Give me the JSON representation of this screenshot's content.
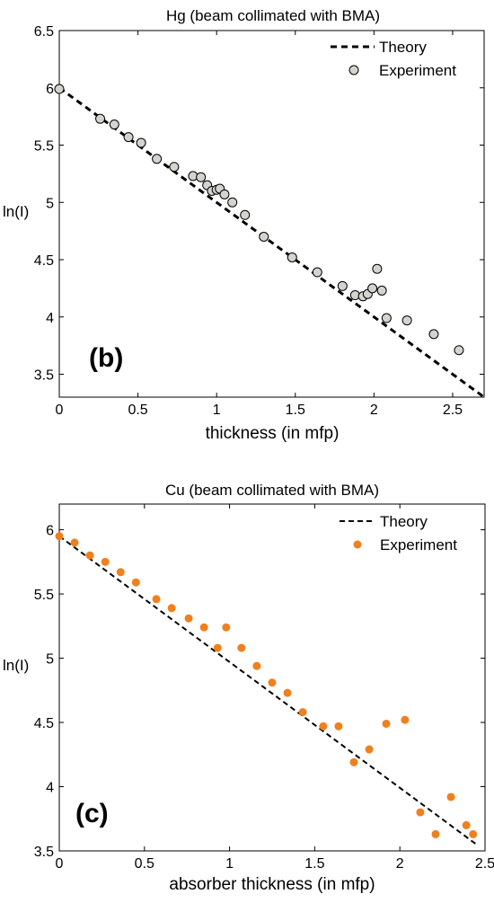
{
  "chart_data": [
    {
      "type": "scatter",
      "panel_label": "(b)",
      "title": "Hg (beam collimated with BMA)",
      "xlabel": "thickness (in mfp)",
      "ylabel": "ln(I)",
      "xlim": [
        0,
        2.7
      ],
      "ylim": [
        3.3,
        6.5
      ],
      "xticks": [
        0,
        0.5,
        1,
        1.5,
        2,
        2.5
      ],
      "xtick_labels": [
        "0",
        "0.5",
        "1",
        "1.5",
        "2",
        "2.5"
      ],
      "yticks": [
        3.5,
        4,
        4.5,
        5,
        5.5,
        6,
        6.5
      ],
      "ytick_labels": [
        "3.5",
        "4",
        "4.5",
        "5",
        "5.5",
        "6",
        "6.5"
      ],
      "grid": false,
      "legend": {
        "position": "top-right",
        "entries": [
          {
            "label": "Theory",
            "style": "dashed-line",
            "color": "#000000"
          },
          {
            "label": "Experiment",
            "style": "circle-marker",
            "color": "#d4d4cf"
          }
        ]
      },
      "series": [
        {
          "name": "Theory",
          "kind": "line",
          "x": [
            0,
            2.7
          ],
          "y": [
            6.0,
            3.3
          ]
        },
        {
          "name": "Experiment",
          "kind": "points",
          "x": [
            0,
            0.26,
            0.35,
            0.44,
            0.52,
            0.62,
            0.73,
            0.85,
            0.9,
            0.94,
            0.97,
            1.0,
            1.02,
            1.05,
            1.1,
            1.18,
            1.3,
            1.48,
            1.64,
            1.8,
            1.88,
            1.93,
            1.96,
            1.99,
            2.02,
            2.05,
            2.08,
            2.21,
            2.38,
            2.54
          ],
          "y": [
            5.99,
            5.73,
            5.68,
            5.57,
            5.52,
            5.38,
            5.31,
            5.23,
            5.22,
            5.15,
            5.1,
            5.11,
            5.12,
            5.07,
            5.0,
            4.89,
            4.7,
            4.52,
            4.39,
            4.27,
            4.19,
            4.18,
            4.2,
            4.25,
            4.42,
            4.23,
            3.99,
            3.97,
            3.85,
            3.71
          ]
        }
      ]
    },
    {
      "type": "scatter",
      "panel_label": "(c)",
      "title": "Cu (beam collimated with BMA)",
      "xlabel": "absorber thickness (in mfp)",
      "ylabel": "ln(I)",
      "xlim": [
        0,
        2.5
      ],
      "ylim": [
        3.5,
        6.2
      ],
      "xticks": [
        0,
        0.5,
        1,
        1.5,
        2,
        2.5
      ],
      "xtick_labels": [
        "0",
        "0.5",
        "1",
        "1.5",
        "2",
        "2.5"
      ],
      "yticks": [
        3.5,
        4,
        4.5,
        5,
        5.5,
        6
      ],
      "ytick_labels": [
        "3.5",
        "4",
        "4.5",
        "5",
        "5.5",
        "6"
      ],
      "grid": false,
      "legend": {
        "position": "top-right",
        "entries": [
          {
            "label": "Theory",
            "style": "dashed-line",
            "color": "#000000"
          },
          {
            "label": "Experiment",
            "style": "dot-marker",
            "color": "#f07f1e"
          }
        ]
      },
      "series": [
        {
          "name": "Theory",
          "kind": "line",
          "x": [
            0,
            2.45
          ],
          "y": [
            5.95,
            3.55
          ]
        },
        {
          "name": "Experiment",
          "kind": "points",
          "x": [
            0,
            0.09,
            0.18,
            0.27,
            0.36,
            0.45,
            0.57,
            0.66,
            0.76,
            0.85,
            0.93,
            0.98,
            1.07,
            1.16,
            1.25,
            1.34,
            1.43,
            1.55,
            1.64,
            1.73,
            1.82,
            1.92,
            2.03,
            2.12,
            2.21,
            2.3,
            2.39,
            2.43
          ],
          "y": [
            5.95,
            5.9,
            5.8,
            5.75,
            5.67,
            5.59,
            5.46,
            5.39,
            5.31,
            5.24,
            5.08,
            5.24,
            5.08,
            4.94,
            4.81,
            4.73,
            4.58,
            4.47,
            4.47,
            4.19,
            4.29,
            4.49,
            4.52,
            3.8,
            3.63,
            3.92,
            3.7,
            3.63
          ]
        }
      ]
    }
  ]
}
